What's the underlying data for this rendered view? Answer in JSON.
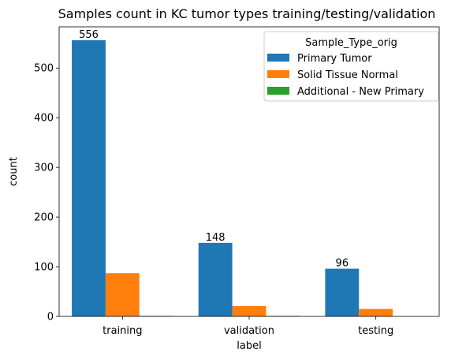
{
  "chart_data": {
    "type": "bar",
    "title": "Samples count in KC tumor types training/testing/validation",
    "xlabel": "label",
    "ylabel": "count",
    "categories": [
      "training",
      "validation",
      "testing"
    ],
    "ylim": [
      0,
      583
    ],
    "yticks": [
      0,
      100,
      200,
      300,
      400,
      500
    ],
    "grid": false,
    "legend": {
      "title": "Sample_Type_orig",
      "placement": "top-right"
    },
    "series": [
      {
        "name": "Primary Tumor",
        "values": [
          556,
          148,
          96
        ],
        "color": "#1f77b4",
        "labels": [
          "556",
          "148",
          "96"
        ]
      },
      {
        "name": "Solid Tissue Normal",
        "values": [
          87,
          21,
          15
        ],
        "color": "#ff7f0e"
      },
      {
        "name": "Additional - New Primary",
        "values": [
          1,
          1,
          0
        ],
        "color": "#2ca02c"
      }
    ]
  }
}
